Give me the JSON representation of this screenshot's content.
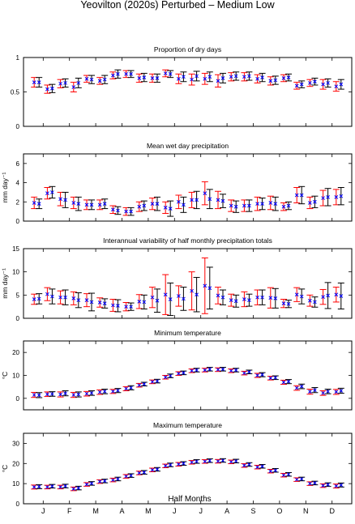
{
  "figure_title": "Yeovilton (2020s) Perturbed – Medium Low",
  "x_axis": {
    "label": "Half Months",
    "month_labels": [
      "J",
      "F",
      "M",
      "A",
      "M",
      "J",
      "J",
      "A",
      "S",
      "O",
      "N",
      "D"
    ],
    "half_months": 24
  },
  "colors": {
    "observed": "#ff0000",
    "modelled": "#000000",
    "marker": "#0000ff"
  },
  "chart_data": [
    {
      "type": "errorbar",
      "title": "Proportion of dry days",
      "ylabel": "",
      "ylim": [
        0,
        1
      ],
      "yticks": [
        "0",
        "0.5",
        "1"
      ],
      "ytick_values": [
        0,
        0.5,
        1
      ],
      "series": [
        {
          "name": "",
          "color": "red",
          "mean": [
            0.64,
            0.54,
            0.62,
            0.57,
            0.69,
            0.66,
            0.74,
            0.76,
            0.7,
            0.7,
            0.77,
            0.69,
            0.68,
            0.69,
            0.66,
            0.72,
            0.72,
            0.69,
            0.66,
            0.7,
            0.59,
            0.63,
            0.61,
            0.58
          ],
          "half_width": [
            0.07,
            0.06,
            0.06,
            0.07,
            0.05,
            0.05,
            0.05,
            0.05,
            0.06,
            0.06,
            0.05,
            0.07,
            0.08,
            0.08,
            0.09,
            0.06,
            0.06,
            0.06,
            0.06,
            0.05,
            0.05,
            0.05,
            0.07,
            0.07
          ]
        },
        {
          "name": "",
          "color": "black",
          "mean": [
            0.64,
            0.55,
            0.63,
            0.63,
            0.68,
            0.68,
            0.76,
            0.76,
            0.71,
            0.7,
            0.76,
            0.72,
            0.73,
            0.72,
            0.7,
            0.73,
            0.73,
            0.71,
            0.67,
            0.71,
            0.61,
            0.65,
            0.63,
            0.61
          ],
          "half_width": [
            0.07,
            0.06,
            0.06,
            0.07,
            0.06,
            0.06,
            0.06,
            0.05,
            0.06,
            0.06,
            0.05,
            0.07,
            0.07,
            0.07,
            0.07,
            0.06,
            0.06,
            0.06,
            0.06,
            0.05,
            0.05,
            0.05,
            0.06,
            0.07
          ]
        }
      ]
    },
    {
      "type": "errorbar",
      "title": "Mean wet day precipitation",
      "ylabel": "mm day⁻¹",
      "ylim": [
        0,
        7
      ],
      "yticks": [
        "0",
        "2",
        "4",
        "6"
      ],
      "ytick_values": [
        0,
        2,
        4,
        6
      ],
      "series": [
        {
          "name": "",
          "color": "red",
          "mean": [
            1.9,
            2.9,
            2.3,
            1.9,
            1.7,
            1.7,
            1.2,
            1.0,
            1.5,
            1.8,
            1.4,
            2.0,
            2.2,
            2.9,
            2.2,
            1.6,
            1.6,
            1.8,
            1.9,
            1.5,
            2.7,
            1.9,
            2.4,
            2.5
          ],
          "half_width": [
            0.6,
            0.6,
            0.7,
            0.6,
            0.5,
            0.5,
            0.4,
            0.4,
            0.5,
            0.6,
            0.6,
            0.7,
            0.8,
            1.2,
            0.9,
            0.6,
            0.6,
            0.7,
            0.7,
            0.4,
            0.8,
            0.6,
            0.8,
            0.8
          ]
        },
        {
          "name": "",
          "color": "black",
          "mean": [
            1.8,
            3.0,
            2.2,
            1.8,
            1.7,
            1.8,
            1.1,
            1.0,
            1.6,
            1.8,
            1.3,
            1.7,
            2.2,
            2.3,
            2.1,
            1.5,
            1.6,
            1.8,
            1.8,
            1.6,
            2.7,
            2.0,
            2.5,
            2.6
          ],
          "half_width": [
            0.5,
            0.6,
            0.8,
            0.7,
            0.5,
            0.5,
            0.4,
            0.4,
            0.5,
            0.7,
            0.8,
            0.8,
            0.9,
            1.0,
            0.7,
            0.6,
            0.6,
            0.6,
            0.7,
            0.4,
            0.9,
            0.6,
            0.9,
            0.9
          ]
        }
      ]
    },
    {
      "type": "errorbar",
      "title": "Interannual variability of half monthly precipitation totals",
      "ylabel": "mm day⁻¹",
      "ylim": [
        0,
        15
      ],
      "yticks": [
        "0",
        "5",
        "10",
        "15"
      ],
      "ytick_values": [
        0,
        5,
        10,
        15
      ],
      "series": [
        {
          "name": "",
          "color": "red",
          "mean": [
            4.1,
            5.2,
            4.5,
            4.3,
            3.9,
            3.4,
            2.8,
            2.5,
            3.6,
            4.5,
            5.1,
            4.8,
            5.9,
            7.0,
            4.9,
            3.9,
            4.1,
            4.5,
            4.4,
            3.2,
            5.1,
            3.8,
            4.6,
            5.1
          ],
          "half_width": [
            1.1,
            1.4,
            1.4,
            1.4,
            1.4,
            1.0,
            1.3,
            0.9,
            1.5,
            2.2,
            4.3,
            2.2,
            4.1,
            6.0,
            1.8,
            1.3,
            1.6,
            1.6,
            2.2,
            0.9,
            1.5,
            1.2,
            1.6,
            1.6
          ]
        },
        {
          "name": "",
          "color": "black",
          "mean": [
            4.2,
            4.7,
            4.5,
            3.9,
            3.5,
            3.2,
            2.7,
            2.5,
            3.5,
            3.8,
            4.1,
            4.2,
            5.1,
            6.5,
            4.5,
            3.7,
            3.9,
            4.5,
            4.3,
            3.1,
            4.7,
            3.5,
            4.9,
            4.8
          ],
          "half_width": [
            1.1,
            1.6,
            1.6,
            1.6,
            1.9,
            1.0,
            1.3,
            0.8,
            1.5,
            2.5,
            3.5,
            2.5,
            3.7,
            4.5,
            1.6,
            1.3,
            1.3,
            1.6,
            2.1,
            0.8,
            1.6,
            1.1,
            2.8,
            2.8
          ]
        }
      ]
    },
    {
      "type": "errorbar",
      "title": "Minimum temperature",
      "ylabel": "°C",
      "ylim": [
        -5,
        25
      ],
      "yticks": [
        "0",
        "10",
        "20"
      ],
      "ytick_values": [
        0,
        10,
        20
      ],
      "series": [
        {
          "name": "",
          "color": "red",
          "mean": [
            1.5,
            1.8,
            1.7,
            1.5,
            2.0,
            2.7,
            3.0,
            4.2,
            5.7,
            7.2,
            9.2,
            10.8,
            12.0,
            12.3,
            12.5,
            12.0,
            11.0,
            10.0,
            8.8,
            7.0,
            4.5,
            2.9,
            2.3,
            2.8
          ],
          "half_width": [
            1.1,
            1.0,
            1.1,
            1.1,
            1.0,
            1.0,
            0.9,
            0.9,
            0.8,
            0.8,
            0.8,
            0.8,
            0.8,
            0.8,
            0.8,
            0.8,
            0.8,
            0.9,
            0.8,
            0.9,
            1.0,
            1.1,
            1.0,
            1.1
          ]
        },
        {
          "name": "",
          "color": "black",
          "mean": [
            1.4,
            1.9,
            2.2,
            1.7,
            2.3,
            3.0,
            3.4,
            4.6,
            6.2,
            7.5,
            9.8,
            11.1,
            12.3,
            12.7,
            12.7,
            12.3,
            11.5,
            10.3,
            9.0,
            7.3,
            5.2,
            3.6,
            3.0,
            3.3
          ],
          "half_width": [
            1.1,
            1.0,
            1.1,
            1.1,
            1.0,
            1.0,
            0.9,
            0.9,
            0.8,
            0.8,
            0.8,
            0.8,
            0.8,
            0.8,
            0.8,
            0.8,
            0.8,
            0.9,
            0.8,
            0.9,
            1.0,
            1.1,
            1.0,
            1.1
          ]
        }
      ]
    },
    {
      "type": "errorbar",
      "title": "Maximum temperature",
      "ylabel": "°C",
      "ylim": [
        0,
        35
      ],
      "yticks": [
        "0",
        "10",
        "20",
        "30"
      ],
      "ytick_values": [
        0,
        10,
        20,
        30
      ],
      "series": [
        {
          "name": "",
          "color": "red",
          "mean": [
            8.3,
            8.3,
            8.3,
            7.4,
            9.6,
            11.0,
            11.8,
            13.6,
            15.3,
            16.8,
            18.8,
            19.6,
            20.6,
            21.0,
            21.1,
            20.8,
            19.0,
            18.2,
            16.2,
            14.2,
            12.0,
            10.0,
            9.0,
            8.8
          ],
          "half_width": [
            1.0,
            0.9,
            0.9,
            0.9,
            0.9,
            0.9,
            0.9,
            0.9,
            0.9,
            0.9,
            0.9,
            0.9,
            0.9,
            0.9,
            0.9,
            0.9,
            0.9,
            0.9,
            0.9,
            0.9,
            0.9,
            0.9,
            0.9,
            1.0
          ]
        },
        {
          "name": "",
          "color": "black",
          "mean": [
            8.5,
            8.7,
            8.8,
            7.8,
            10.1,
            11.3,
            12.3,
            14.0,
            15.6,
            17.1,
            19.3,
            20.0,
            21.0,
            21.4,
            21.5,
            21.2,
            19.5,
            18.6,
            16.6,
            14.6,
            12.3,
            10.3,
            9.5,
            9.3
          ],
          "half_width": [
            1.0,
            0.9,
            0.9,
            0.9,
            0.9,
            0.9,
            0.9,
            0.9,
            0.9,
            0.9,
            0.9,
            0.9,
            0.9,
            0.9,
            0.9,
            0.9,
            0.9,
            0.9,
            0.9,
            0.9,
            0.9,
            0.9,
            0.9,
            1.0
          ]
        }
      ]
    }
  ]
}
